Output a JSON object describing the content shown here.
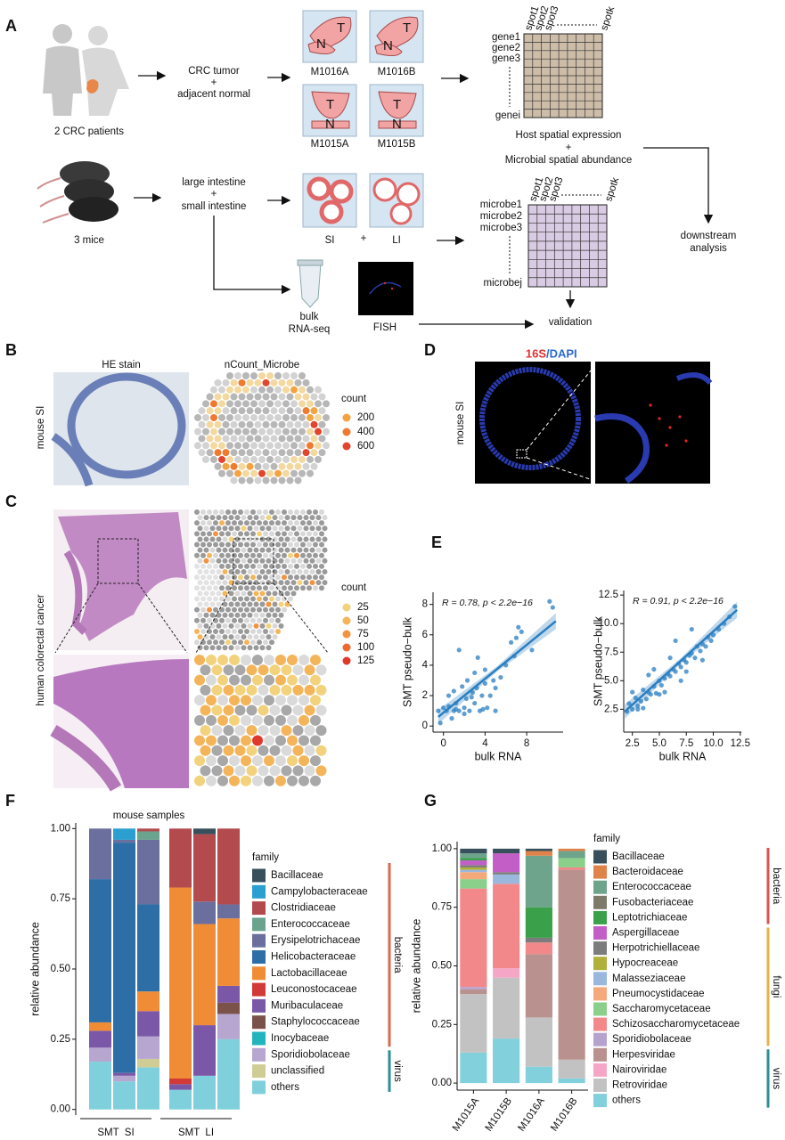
{
  "panels": {
    "A": {
      "label": "A",
      "patients": "2 CRC patients",
      "crc_step": [
        "CRC tumor",
        "+",
        "adjacent normal"
      ],
      "samples": [
        "M1016A",
        "M1016B",
        "M1015A",
        "M1015B"
      ],
      "tumor_mark": "T",
      "normal_mark": "N",
      "spots": [
        "spot1",
        "spot2",
        "spot3",
        "spotk"
      ],
      "genes": [
        "gene1",
        "gene2",
        "gene3",
        "genei"
      ],
      "combine": [
        "Host spatial expression",
        "+",
        "Microbial spatial abundance"
      ],
      "mice": "3 mice",
      "mouse_step": [
        "large intestine",
        "+",
        "small intestine"
      ],
      "tissues": [
        "SI",
        "+",
        "LI"
      ],
      "microbes": [
        "microbe1",
        "microbe2",
        "microbe3",
        "microbej"
      ],
      "downstream": [
        "downstream",
        "analysis"
      ],
      "bulk": [
        "bulk",
        "RNA-seq"
      ],
      "fish": "FISH",
      "validation": "validation"
    },
    "B": {
      "label": "B",
      "titles": [
        "HE stain",
        "nCount_Microbe"
      ],
      "row_label": "mouse SI",
      "legend_title": "count",
      "legend_values": [
        200,
        400,
        600
      ],
      "legend_colors": [
        "#f4a340",
        "#ef7a2f",
        "#e2452b"
      ]
    },
    "C": {
      "label": "C",
      "row_label": "human colorectal cancer",
      "legend_title": "count",
      "legend_values": [
        25,
        50,
        75,
        100,
        125
      ],
      "legend_colors": [
        "#f2d27c",
        "#f4b55a",
        "#f29340",
        "#ec6a2c",
        "#e0382a"
      ]
    },
    "D": {
      "label": "D",
      "stain": [
        "16S",
        "/DAPI"
      ],
      "row_label": "mouse SI"
    },
    "E": {
      "label": "E"
    },
    "F": {
      "label": "F"
    },
    "G": {
      "label": "G"
    }
  },
  "chart_data": [
    {
      "type": "scatter",
      "annotation": "R = 0.78, p < 2.2e−16",
      "xlabel": "bulk RNA",
      "ylabel": "SMT pseudo−bulk",
      "color": "#2a7ec0",
      "xlim": [
        -1,
        11.5
      ],
      "ylim": [
        -0.4,
        8.8
      ],
      "xticks": [
        0,
        4,
        8
      ],
      "yticks": [
        0,
        2,
        4,
        6,
        8
      ],
      "x": [
        -0.5,
        0,
        0.3,
        0.5,
        1,
        1.2,
        1.5,
        2,
        2.2,
        2.5,
        2.8,
        3,
        3.2,
        3.5,
        3.7,
        4,
        4.2,
        4.5,
        4.8,
        5,
        0.5,
        1,
        1.8,
        2.3,
        3,
        1.5,
        3.3,
        4,
        5.5,
        6,
        6.5,
        7,
        7.5,
        7.2,
        8.5,
        10.2,
        10.5,
        -0.3,
        0.8,
        2,
        5,
        6.8,
        2.7,
        1.2,
        3.8
      ],
      "y": [
        1,
        1.2,
        1,
        1.3,
        1,
        1.5,
        1,
        1.2,
        1.8,
        1,
        2.2,
        1.5,
        2.5,
        1,
        2,
        2.8,
        1.2,
        2,
        3,
        2.5,
        2,
        2.3,
        2.6,
        3,
        3.5,
        5,
        4.5,
        3.7,
        3.2,
        4,
        5.5,
        5.8,
        6.2,
        6.5,
        5,
        8.2,
        7.8,
        0.2,
        0.5,
        0.8,
        1,
        4.6,
        1.9,
        1.1,
        1.1
      ],
      "fit_line": {
        "x": [
          -0.5,
          10.8
        ],
        "y": [
          0.6,
          6.9
        ]
      }
    },
    {
      "type": "scatter",
      "annotation": "R = 0.91, p < 2.2e−16",
      "xlabel": "bulk RNA",
      "ylabel": "SMT pseudo−bulk",
      "color": "#2a7ec0",
      "xlim": [
        1.7,
        12.6
      ],
      "ylim": [
        0.5,
        12.9
      ],
      "xticks": [
        2.5,
        {
          "value": 5,
          "label": "5.0"
        },
        7.5,
        {
          "value": 10,
          "label": "10.0"
        },
        12.5
      ],
      "yticks": [
        2.5,
        {
          "value": 5,
          "label": "5.0"
        },
        7.5,
        {
          "value": 10,
          "label": "10.0"
        },
        12.5
      ],
      "x": [
        2.0,
        2.2,
        2.5,
        2.8,
        3.0,
        3.3,
        3.5,
        3.8,
        4.0,
        4.2,
        4.5,
        4.7,
        5.0,
        5.2,
        5.5,
        5.8,
        6.0,
        6.3,
        6.5,
        6.8,
        7.0,
        7.3,
        7.5,
        7.8,
        8.0,
        8.3,
        8.5,
        8.8,
        9.0,
        9.3,
        9.5,
        9.8,
        10.0,
        10.5,
        11.0,
        11.5,
        12.0,
        3.0,
        4.0,
        5.0,
        6.0,
        7.0,
        8.0,
        9.0,
        2.5,
        3.5,
        4.5,
        5.5,
        6.5,
        7.5
      ],
      "y": [
        2.3,
        3.0,
        2.5,
        3.5,
        2.8,
        3.2,
        4.2,
        3.4,
        4.0,
        3.8,
        4.5,
        3.9,
        5.0,
        4.6,
        5.2,
        5.6,
        5.4,
        6.0,
        5.8,
        6.5,
        6.2,
        6.8,
        6.6,
        7.2,
        7.4,
        7.0,
        8.0,
        7.6,
        8.2,
        8.0,
        8.8,
        8.5,
        9.0,
        9.5,
        10.0,
        10.6,
        11.5,
        2.5,
        5.5,
        3.8,
        7.0,
        5.0,
        9.5,
        6.8,
        4.0,
        2.6,
        6.0,
        4.0,
        8.5,
        5.8
      ],
      "fit_line": {
        "x": [
          1.8,
          12.2
        ],
        "y": [
          2.3,
          11.2
        ]
      }
    },
    {
      "type": "bar",
      "stacked": true,
      "title": "mouse samples",
      "ylabel": "relative abundance",
      "legend_title": "family",
      "categories": [
        null,
        null,
        null,
        null,
        null,
        null
      ],
      "groups": [
        "SMT  SI",
        "SMT  LI"
      ],
      "ylim": [
        -0.02,
        1.02
      ],
      "yticks": [
        {
          "value": 0,
          "label": "0.00"
        },
        {
          "value": 0.25,
          "label": "0.25"
        },
        {
          "value": 0.5,
          "label": "0.50"
        },
        {
          "value": 0.75,
          "label": "0.75"
        },
        {
          "value": 1,
          "label": "1.00"
        }
      ],
      "legend_groups": [
        {
          "label": "bacteria",
          "color": "#d9694d"
        },
        {
          "label": "virus",
          "color": "#2c8f96"
        }
      ],
      "series": [
        {
          "name": "Bacillaceae",
          "color": "#37505c",
          "values": [
            0,
            0,
            0,
            0,
            0.02,
            0
          ]
        },
        {
          "name": "Campylobacteraceae",
          "color": "#2a9fd0",
          "values": [
            0,
            0.04,
            0,
            0,
            0,
            0
          ]
        },
        {
          "name": "Clostridiaceae",
          "color": "#b24a4e",
          "values": [
            0,
            0,
            0.01,
            0.21,
            0.24,
            0.27
          ]
        },
        {
          "name": "Enterococcaceae",
          "color": "#6aa38e",
          "values": [
            0,
            0,
            0.03,
            0,
            0,
            0
          ]
        },
        {
          "name": "Erysipelotrichaceae",
          "color": "#6a6f9e",
          "values": [
            0.18,
            0.01,
            0.23,
            0,
            0.08,
            0.05
          ]
        },
        {
          "name": "Helicobacteraceae",
          "color": "#2e6ea6",
          "values": [
            0.51,
            0.82,
            0.31,
            0,
            0,
            0
          ]
        },
        {
          "name": "Lactobacillaceae",
          "color": "#f08c35",
          "values": [
            0.03,
            0,
            0.07,
            0.68,
            0.36,
            0.24
          ]
        },
        {
          "name": "Leuconostocaceae",
          "color": "#d13a36",
          "values": [
            0,
            0,
            0,
            0.02,
            0,
            0
          ]
        },
        {
          "name": "Muribaculaceae",
          "color": "#7b57a8",
          "values": [
            0.06,
            0.01,
            0.09,
            0.02,
            0.18,
            0.06
          ]
        },
        {
          "name": "Staphylococcaceae",
          "color": "#7a5249",
          "values": [
            0,
            0,
            0,
            0,
            0,
            0.04
          ]
        },
        {
          "name": "Inocybaceae",
          "color": "#22b5bd",
          "values": [
            0,
            0,
            0,
            0,
            0,
            0
          ]
        },
        {
          "name": "Sporidiobolaceae",
          "color": "#b6a6d0",
          "values": [
            0.05,
            0.02,
            0.08,
            0,
            0,
            0.09
          ]
        },
        {
          "name": "unclassified",
          "color": "#cfcd95",
          "values": [
            0,
            0,
            0.03,
            0,
            0,
            0
          ]
        },
        {
          "name": "others",
          "color": "#7fd0dc",
          "values": [
            0.17,
            0.1,
            0.15,
            0.07,
            0.12,
            0.25
          ]
        }
      ]
    },
    {
      "type": "bar",
      "stacked": true,
      "ylabel": "relative abundance",
      "legend_title": "family",
      "categories": [
        "M1015A",
        "M1015B",
        "M1016A",
        "M1016B"
      ],
      "ylim": [
        -0.03,
        1.03
      ],
      "yticks": [
        {
          "value": 0,
          "label": "0.00"
        },
        {
          "value": 0.25,
          "label": "0.25"
        },
        {
          "value": 0.5,
          "label": "0.50"
        },
        {
          "value": 0.75,
          "label": "0.75"
        },
        {
          "value": 1,
          "label": "1.00"
        }
      ],
      "legend_groups": [
        {
          "label": "bacteria",
          "color": "#d9554d"
        },
        {
          "label": "fungi",
          "color": "#e8b04a"
        },
        {
          "label": "virus",
          "color": "#2c8f96"
        }
      ],
      "series": [
        {
          "name": "Bacillaceae",
          "color": "#37505c",
          "values": [
            0.02,
            0.02,
            0.01,
            0
          ]
        },
        {
          "name": "Bacteroidaceae",
          "color": "#e0834a",
          "values": [
            0,
            0,
            0.02,
            0.01
          ]
        },
        {
          "name": "Enterococcaceae",
          "color": "#6ea38c",
          "values": [
            0.02,
            0,
            0.22,
            0.03
          ]
        },
        {
          "name": "Fusobacteriaceae",
          "color": "#7d7a6a",
          "values": [
            0,
            0,
            0,
            0
          ]
        },
        {
          "name": "Leptotrichiaceae",
          "color": "#3aa04a",
          "values": [
            0.01,
            0,
            0.13,
            0
          ]
        },
        {
          "name": "Aspergillaceae",
          "color": "#c25ec5",
          "values": [
            0.02,
            0.08,
            0,
            0
          ]
        },
        {
          "name": "Herpotrichiellaceae",
          "color": "#7c7c7c",
          "values": [
            0.01,
            0.01,
            0.02,
            0
          ]
        },
        {
          "name": "Hypocreaceae",
          "color": "#b0b03a",
          "values": [
            0.01,
            0,
            0,
            0
          ]
        },
        {
          "name": "Malasseziaceae",
          "color": "#9ab7de",
          "values": [
            0.01,
            0.04,
            0,
            0
          ]
        },
        {
          "name": "Pneumocystidaceae",
          "color": "#f5a87a",
          "values": [
            0.03,
            0,
            0,
            0
          ]
        },
        {
          "name": "Saccharomycetaceae",
          "color": "#8bd08a",
          "values": [
            0.04,
            0,
            0,
            0.04
          ]
        },
        {
          "name": "Schizosaccharomycetaceae",
          "color": "#f2888a",
          "values": [
            0.42,
            0.36,
            0.05,
            0.01
          ]
        },
        {
          "name": "Sporidiobolaceae",
          "color": "#b5a3cd",
          "values": [
            0.01,
            0,
            0,
            0
          ]
        },
        {
          "name": "Herpesviridae",
          "color": "#b9918e",
          "values": [
            0.02,
            0,
            0.27,
            0.81
          ]
        },
        {
          "name": "Nairoviridae",
          "color": "#f5a6c6",
          "values": [
            0,
            0.04,
            0,
            0
          ]
        },
        {
          "name": "Retroviridae",
          "color": "#c2c2c2",
          "values": [
            0.25,
            0.26,
            0.21,
            0.08
          ]
        },
        {
          "name": "others",
          "color": "#82d0db",
          "values": [
            0.13,
            0.19,
            0.07,
            0.02
          ]
        }
      ]
    }
  ]
}
